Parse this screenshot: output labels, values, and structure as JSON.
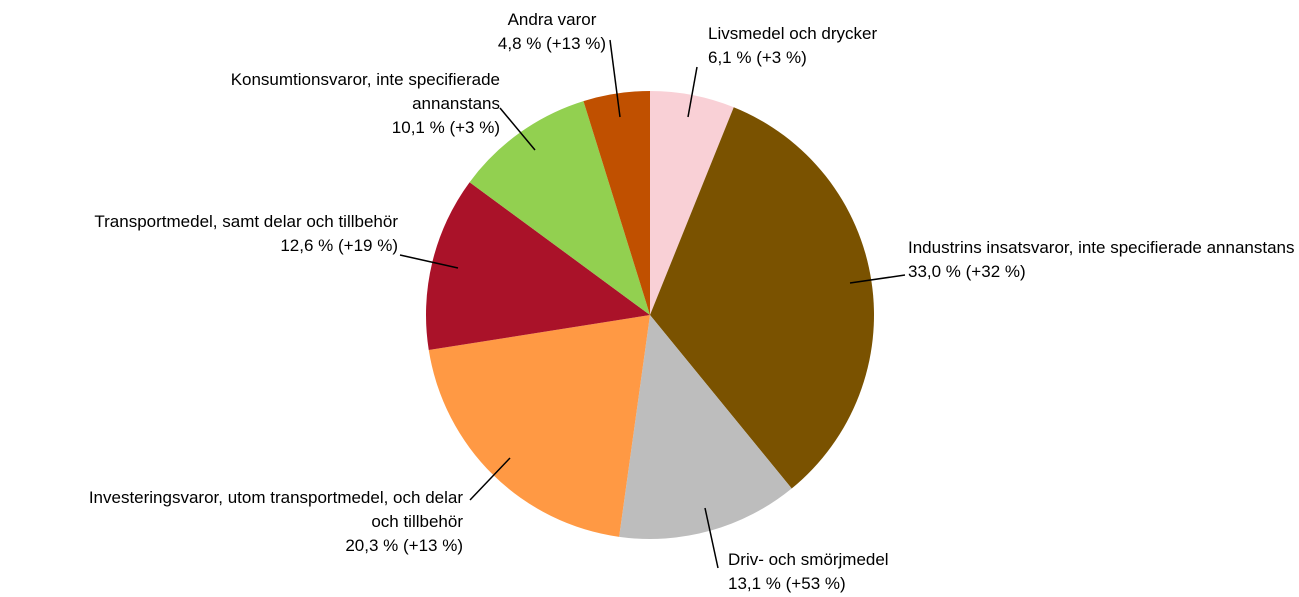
{
  "chart_data": {
    "type": "pie",
    "categories": [
      "Livsmedel och drycker",
      "Industrins insatsvaror, inte specifierade annanstans",
      "Driv- och smörjmedel",
      "Investeringsvaror, utom transportmedel, och delar och tillbehör",
      "Transportmedel, samt delar och tillbehör",
      "Konsumtionsvaror, inte specifierade annanstans",
      "Andra varor"
    ],
    "values": [
      6.1,
      33.0,
      13.1,
      20.3,
      12.6,
      10.1,
      4.8
    ],
    "value_labels": [
      "6,1 % (+3 %)",
      "33,0 % (+32 %)",
      "13,1 % (+53 %)",
      "20,3 % (+13 %)",
      "12,6 % (+19 %)",
      "10,1 % (+3 %)",
      "4,8 % (+13 %)"
    ],
    "colors": [
      "#f9d0d6",
      "#7a5200",
      "#bdbdbd",
      "#ff9944",
      "#aa1229",
      "#92d050",
      "#c05000"
    ]
  }
}
